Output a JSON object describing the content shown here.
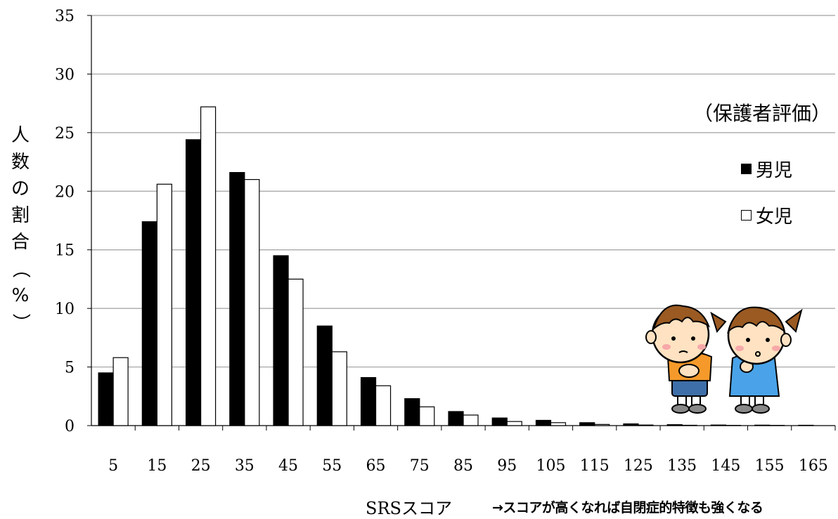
{
  "chart_data": {
    "type": "bar",
    "title": "",
    "note": "（保護者評価）",
    "xlabel": "SRSスコア",
    "xlabel_note": "→スコアが高くなれば自閉症的特徴も強くなる",
    "ylabel": "人数の割合（%）",
    "ylim": [
      0,
      35
    ],
    "yticks": [
      0,
      5,
      10,
      15,
      20,
      25,
      30,
      35
    ],
    "grid": true,
    "legend_position": "right",
    "categories": [
      "5",
      "15",
      "25",
      "35",
      "45",
      "55",
      "65",
      "75",
      "85",
      "95",
      "105",
      "115",
      "125",
      "135",
      "145",
      "155",
      "165"
    ],
    "series": [
      {
        "name": "男児",
        "color": "#000000",
        "values": [
          4.5,
          17.4,
          24.4,
          21.6,
          14.5,
          8.5,
          4.1,
          2.3,
          1.2,
          0.65,
          0.45,
          0.25,
          0.15,
          0.08,
          0.05,
          0.04,
          0.03
        ]
      },
      {
        "name": "女児",
        "color": "#ffffff",
        "values": [
          5.8,
          20.6,
          27.2,
          21.0,
          12.5,
          6.3,
          3.4,
          1.6,
          0.9,
          0.35,
          0.25,
          0.1,
          0.05,
          0.03,
          0.02,
          0.02,
          0.0
        ]
      }
    ]
  }
}
